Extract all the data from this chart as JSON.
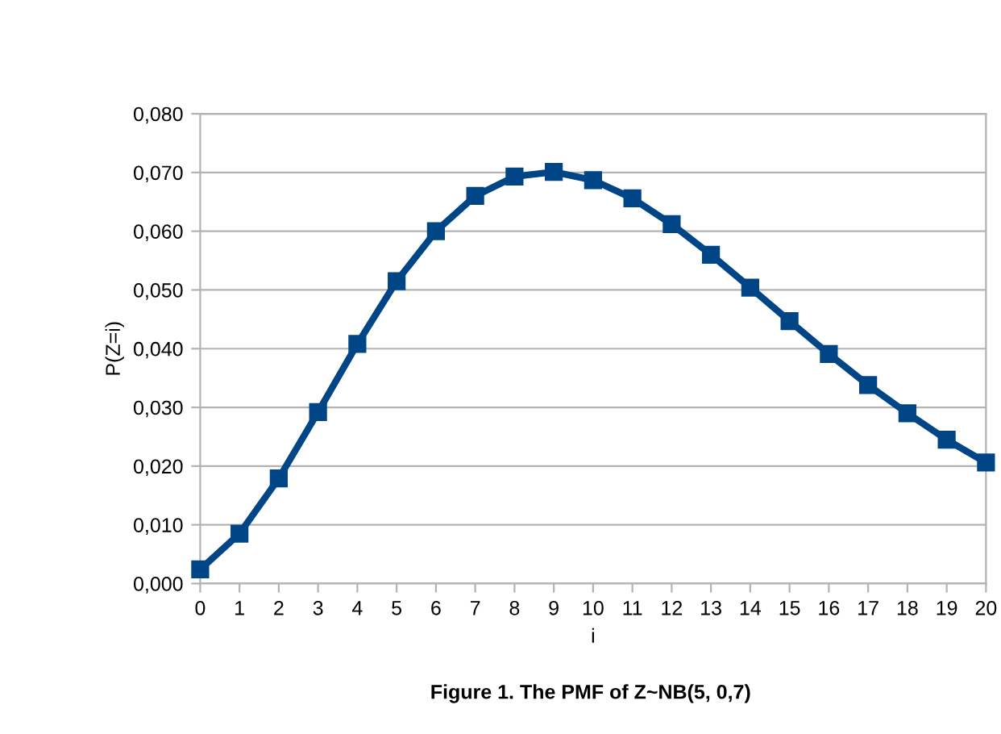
{
  "chart_data": {
    "type": "line",
    "xlabel": "i",
    "ylabel": "P(Z=i)",
    "annotations": [
      "Figure 1. The PMF of Z~NB(5, 0,7)"
    ],
    "x": [
      0,
      1,
      2,
      3,
      4,
      5,
      6,
      7,
      8,
      9,
      10,
      11,
      12,
      13,
      14,
      15,
      16,
      17,
      18,
      19,
      20
    ],
    "series": [
      {
        "color": "#004586",
        "values": [
          0.0024,
          0.0085,
          0.0179,
          0.0292,
          0.0408,
          0.0515,
          0.06,
          0.066,
          0.0693,
          0.0701,
          0.0687,
          0.0656,
          0.0612,
          0.056,
          0.0504,
          0.0447,
          0.0391,
          0.0338,
          0.029,
          0.0245,
          0.0206
        ]
      }
    ],
    "xlim": [
      0,
      20
    ],
    "xticks": [
      0,
      1,
      2,
      3,
      4,
      5,
      6,
      7,
      8,
      9,
      10,
      11,
      12,
      13,
      14,
      15,
      16,
      17,
      18,
      19,
      20
    ],
    "ylim": [
      0,
      0.08
    ],
    "yticks": [
      {
        "value": 0,
        "label": "0,000"
      },
      {
        "value": 0.01,
        "label": "0,010"
      },
      {
        "value": 0.02,
        "label": "0,020"
      },
      {
        "value": 0.03,
        "label": "0,030"
      },
      {
        "value": 0.04,
        "label": "0,040"
      },
      {
        "value": 0.05,
        "label": "0,050"
      },
      {
        "value": 0.06,
        "label": "0,060"
      },
      {
        "value": 0.07,
        "label": "0,070"
      },
      {
        "value": 0.08,
        "label": "0,080"
      }
    ],
    "grid": "y",
    "marker": "square",
    "line_style": "solid"
  }
}
